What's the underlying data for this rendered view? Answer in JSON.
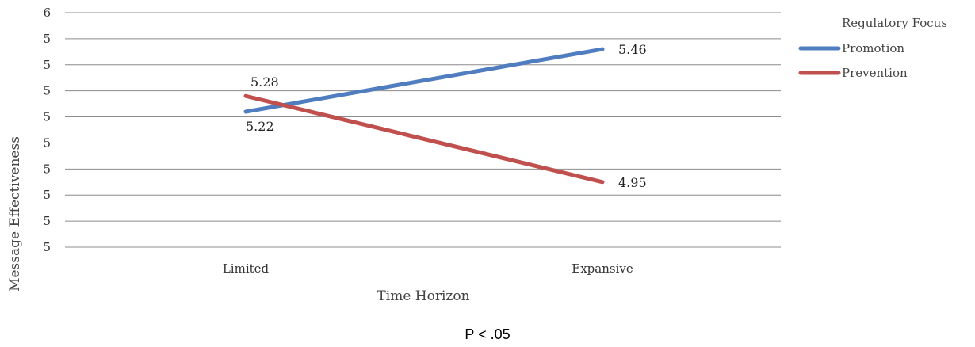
{
  "chart_data": {
    "type": "line",
    "categories": [
      "Limited",
      "Expansive"
    ],
    "series": [
      {
        "name": "Promotion",
        "values": [
          5.22,
          5.46
        ],
        "color": "#4f7dbf",
        "labels": [
          "5.22",
          "5.46"
        ]
      },
      {
        "name": "Prevention",
        "values": [
          5.28,
          4.95
        ],
        "color": "#c0504d",
        "labels": [
          "5.28",
          "4.95"
        ]
      }
    ],
    "ylim": [
      4.7,
      5.6
    ],
    "yticks": [
      4.7,
      4.8,
      4.9,
      5.0,
      5.1,
      5.2,
      5.3,
      5.4,
      5.5,
      5.6
    ],
    "ytick_labels": [
      "5",
      "5",
      "5",
      "5",
      "5",
      "5",
      "5",
      "5",
      "5",
      "6"
    ],
    "xlabel": "Time Horizon",
    "ylabel": "Message Effectiveness",
    "legend": {
      "title": "Regulatory Focus",
      "placement": "right"
    },
    "grid": true
  },
  "note": "P < .05"
}
